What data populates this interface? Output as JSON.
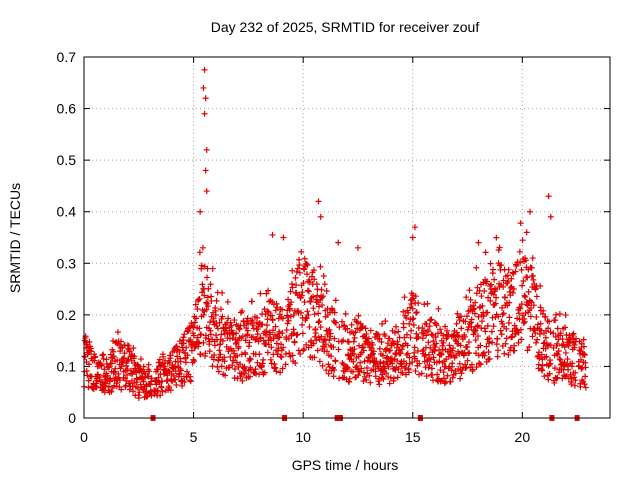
{
  "chart_data": {
    "type": "scatter",
    "title": "Day 232 of 2025, SRMTID for receiver zouf",
    "xlabel": "GPS time / hours",
    "ylabel": "SRMTID / TECUs",
    "xlim": [
      0,
      24
    ],
    "ylim": [
      0,
      0.7
    ],
    "x_ticks": [
      0,
      5,
      10,
      15,
      20
    ],
    "x_tick_labels": [
      "0",
      "5",
      "10",
      "15",
      "20"
    ],
    "y_ticks": [
      0,
      0.1,
      0.2,
      0.3,
      0.4,
      0.5,
      0.6,
      0.7
    ],
    "y_tick_labels": [
      "0",
      "0.1",
      "0.2",
      "0.3",
      "0.4",
      "0.5",
      "0.6",
      "0.7"
    ],
    "grid": true,
    "legend": "none",
    "colors": {
      "series": "#e00000",
      "grid": "#a0a0a0",
      "axis": "#000000"
    },
    "marker": "plus",
    "series": [
      {
        "name": "SRMTID",
        "envelope_hours": [
          0,
          0.5,
          1,
          1.5,
          2,
          2.5,
          3,
          3.5,
          4,
          4.5,
          5,
          5.2,
          5.4,
          5.6,
          5.8,
          6,
          6.5,
          7,
          7.5,
          8,
          8.5,
          9,
          9.5,
          10,
          10.5,
          11,
          11.5,
          12,
          12.5,
          13,
          13.5,
          14,
          14.5,
          15,
          15.5,
          16,
          16.5,
          17,
          17.5,
          18,
          18.5,
          19,
          19.5,
          20,
          20.5,
          21,
          21.5,
          22,
          22.5,
          22.9
        ],
        "typical_values": [
          0.11,
          0.1,
          0.08,
          0.1,
          0.1,
          0.07,
          0.07,
          0.08,
          0.09,
          0.11,
          0.13,
          0.18,
          0.22,
          0.2,
          0.18,
          0.16,
          0.14,
          0.13,
          0.13,
          0.14,
          0.16,
          0.15,
          0.18,
          0.22,
          0.2,
          0.16,
          0.14,
          0.12,
          0.14,
          0.12,
          0.11,
          0.12,
          0.14,
          0.17,
          0.14,
          0.13,
          0.12,
          0.13,
          0.15,
          0.18,
          0.2,
          0.22,
          0.2,
          0.24,
          0.2,
          0.14,
          0.12,
          0.12,
          0.11,
          0.1
        ],
        "peaks": [
          {
            "x": 5.5,
            "y": 0.675
          },
          {
            "x": 5.45,
            "y": 0.64
          },
          {
            "x": 5.55,
            "y": 0.62
          },
          {
            "x": 5.5,
            "y": 0.59
          },
          {
            "x": 5.6,
            "y": 0.52
          },
          {
            "x": 5.55,
            "y": 0.48
          },
          {
            "x": 5.6,
            "y": 0.44
          },
          {
            "x": 5.3,
            "y": 0.4
          },
          {
            "x": 10.7,
            "y": 0.42
          },
          {
            "x": 10.8,
            "y": 0.39
          },
          {
            "x": 20.2,
            "y": 0.36
          },
          {
            "x": 20.35,
            "y": 0.4
          },
          {
            "x": 21.2,
            "y": 0.43
          },
          {
            "x": 21.3,
            "y": 0.39
          },
          {
            "x": 11.6,
            "y": 0.34
          },
          {
            "x": 15.1,
            "y": 0.37
          },
          {
            "x": 15.0,
            "y": 0.35
          },
          {
            "x": 8.6,
            "y": 0.355
          },
          {
            "x": 9.1,
            "y": 0.35
          },
          {
            "x": 18.0,
            "y": 0.34
          },
          {
            "x": 12.5,
            "y": 0.33
          }
        ]
      }
    ],
    "gap_markers_hours": [
      3.15,
      9.15,
      11.55,
      11.7,
      15.35,
      21.35,
      22.5
    ]
  }
}
